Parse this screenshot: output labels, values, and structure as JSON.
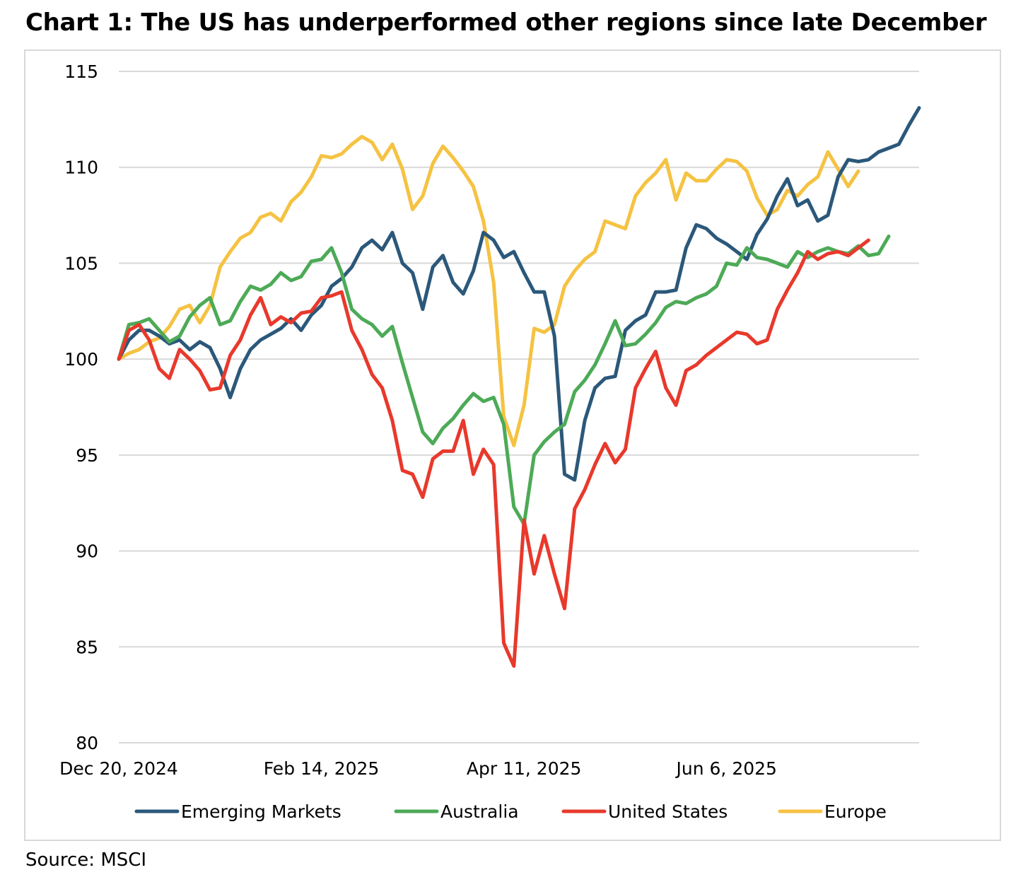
{
  "title": "Chart 1: The US has underperformed other regions since late December",
  "source": "Source: MSCI",
  "chart_data": {
    "type": "line",
    "title": "Chart 1: The US has underperformed other regions since late December",
    "xlabel": "",
    "ylabel": "",
    "ylim": [
      80,
      115
    ],
    "yticks": [
      "115",
      "110",
      "105",
      "100",
      "95",
      "90",
      "85",
      "80"
    ],
    "xticks": [
      "Dec 20, 2024",
      "Feb 14, 2025",
      "Apr 11, 2025",
      "Jun 6, 2025"
    ],
    "grid": true,
    "legend_position": "bottom",
    "x_index": "trading days from Dec 20, 2024 (0) to late Jul 2025 (149); Feb 14, 2025 = 40, Apr 11, 2025 = 80, Jun 6, 2025 = 120",
    "series": [
      {
        "name": "Emerging Markets",
        "color": "#2b587a",
        "points": [
          [
            0,
            100
          ],
          [
            2,
            101
          ],
          [
            4,
            101.5
          ],
          [
            6,
            101.5
          ],
          [
            8,
            101.2
          ],
          [
            10,
            100.8
          ],
          [
            12,
            101
          ],
          [
            14,
            100.5
          ],
          [
            16,
            100.9
          ],
          [
            18,
            100.6
          ],
          [
            20,
            99.5
          ],
          [
            22,
            98
          ],
          [
            24,
            99.5
          ],
          [
            26,
            100.5
          ],
          [
            28,
            101
          ],
          [
            30,
            101.3
          ],
          [
            32,
            101.6
          ],
          [
            34,
            102.1
          ],
          [
            36,
            101.5
          ],
          [
            38,
            102.3
          ],
          [
            40,
            102.8
          ],
          [
            42,
            103.8
          ],
          [
            44,
            104.2
          ],
          [
            46,
            104.8
          ],
          [
            48,
            105.8
          ],
          [
            50,
            106.2
          ],
          [
            52,
            105.7
          ],
          [
            54,
            106.6
          ],
          [
            56,
            105
          ],
          [
            58,
            104.5
          ],
          [
            60,
            102.6
          ],
          [
            62,
            104.8
          ],
          [
            64,
            105.4
          ],
          [
            66,
            104
          ],
          [
            68,
            103.4
          ],
          [
            70,
            104.6
          ],
          [
            72,
            106.6
          ],
          [
            74,
            106.2
          ],
          [
            76,
            105.3
          ],
          [
            78,
            105.6
          ],
          [
            80,
            104.5
          ],
          [
            82,
            103.5
          ],
          [
            84,
            103.5
          ],
          [
            86,
            101.2
          ],
          [
            88,
            94
          ],
          [
            90,
            93.7
          ],
          [
            92,
            96.8
          ],
          [
            94,
            98.5
          ],
          [
            96,
            99
          ],
          [
            98,
            99.1
          ],
          [
            100,
            101.5
          ],
          [
            102,
            102
          ],
          [
            104,
            102.3
          ],
          [
            106,
            103.5
          ],
          [
            108,
            103.5
          ],
          [
            110,
            103.6
          ],
          [
            112,
            105.8
          ],
          [
            114,
            107
          ],
          [
            116,
            106.8
          ],
          [
            118,
            106.3
          ],
          [
            120,
            106
          ],
          [
            122,
            105.6
          ],
          [
            124,
            105.2
          ],
          [
            126,
            106.5
          ],
          [
            128,
            107.3
          ],
          [
            130,
            108.5
          ],
          [
            132,
            109.4
          ],
          [
            134,
            108
          ],
          [
            136,
            108.3
          ],
          [
            138,
            107.2
          ],
          [
            140,
            107.5
          ],
          [
            142,
            109.5
          ],
          [
            144,
            110.4
          ],
          [
            146,
            110.3
          ],
          [
            148,
            110.4
          ],
          [
            150,
            110.8
          ],
          [
            152,
            111
          ],
          [
            154,
            111.2
          ],
          [
            156,
            112.2
          ],
          [
            158,
            113.1
          ]
        ]
      },
      {
        "name": "Australia",
        "color": "#4daa57",
        "points": [
          [
            0,
            100
          ],
          [
            2,
            101.8
          ],
          [
            4,
            101.9
          ],
          [
            6,
            102.1
          ],
          [
            8,
            101.5
          ],
          [
            10,
            100.9
          ],
          [
            12,
            101.2
          ],
          [
            14,
            102.2
          ],
          [
            16,
            102.8
          ],
          [
            18,
            103.2
          ],
          [
            20,
            101.8
          ],
          [
            22,
            102
          ],
          [
            24,
            103
          ],
          [
            26,
            103.8
          ],
          [
            28,
            103.6
          ],
          [
            30,
            103.9
          ],
          [
            32,
            104.5
          ],
          [
            34,
            104.1
          ],
          [
            36,
            104.3
          ],
          [
            38,
            105.1
          ],
          [
            40,
            105.2
          ],
          [
            42,
            105.8
          ],
          [
            44,
            104.5
          ],
          [
            46,
            102.6
          ],
          [
            48,
            102.1
          ],
          [
            50,
            101.8
          ],
          [
            52,
            101.2
          ],
          [
            54,
            101.7
          ],
          [
            56,
            99.8
          ],
          [
            58,
            98
          ],
          [
            60,
            96.2
          ],
          [
            62,
            95.6
          ],
          [
            64,
            96.4
          ],
          [
            66,
            96.9
          ],
          [
            68,
            97.6
          ],
          [
            70,
            98.2
          ],
          [
            72,
            97.8
          ],
          [
            74,
            98
          ],
          [
            76,
            96.6
          ],
          [
            78,
            92.3
          ],
          [
            80,
            91.4
          ],
          [
            82,
            95
          ],
          [
            84,
            95.7
          ],
          [
            86,
            96.2
          ],
          [
            88,
            96.6
          ],
          [
            90,
            98.3
          ],
          [
            92,
            98.9
          ],
          [
            94,
            99.7
          ],
          [
            96,
            100.8
          ],
          [
            98,
            102
          ],
          [
            100,
            100.7
          ],
          [
            102,
            100.8
          ],
          [
            104,
            101.3
          ],
          [
            106,
            101.9
          ],
          [
            108,
            102.7
          ],
          [
            110,
            103
          ],
          [
            112,
            102.9
          ],
          [
            114,
            103.2
          ],
          [
            116,
            103.4
          ],
          [
            118,
            103.8
          ],
          [
            120,
            105
          ],
          [
            122,
            104.9
          ],
          [
            124,
            105.8
          ],
          [
            126,
            105.3
          ],
          [
            128,
            105.2
          ],
          [
            130,
            105
          ],
          [
            132,
            104.8
          ],
          [
            134,
            105.6
          ],
          [
            136,
            105.3
          ],
          [
            138,
            105.6
          ],
          [
            140,
            105.8
          ],
          [
            142,
            105.6
          ],
          [
            144,
            105.5
          ],
          [
            146,
            105.9
          ],
          [
            148,
            105.4
          ],
          [
            150,
            105.5
          ],
          [
            152,
            106.4
          ]
        ]
      },
      {
        "name": "United States",
        "color": "#e8392c",
        "points": [
          [
            0,
            100
          ],
          [
            2,
            101.5
          ],
          [
            4,
            101.8
          ],
          [
            6,
            101
          ],
          [
            8,
            99.5
          ],
          [
            10,
            99
          ],
          [
            12,
            100.5
          ],
          [
            14,
            100
          ],
          [
            16,
            99.4
          ],
          [
            18,
            98.4
          ],
          [
            20,
            98.5
          ],
          [
            22,
            100.2
          ],
          [
            24,
            101
          ],
          [
            26,
            102.3
          ],
          [
            28,
            103.2
          ],
          [
            30,
            101.8
          ],
          [
            32,
            102.2
          ],
          [
            34,
            101.9
          ],
          [
            36,
            102.4
          ],
          [
            38,
            102.5
          ],
          [
            40,
            103.2
          ],
          [
            42,
            103.3
          ],
          [
            44,
            103.5
          ],
          [
            46,
            101.5
          ],
          [
            48,
            100.5
          ],
          [
            50,
            99.2
          ],
          [
            52,
            98.5
          ],
          [
            54,
            96.8
          ],
          [
            56,
            94.2
          ],
          [
            58,
            94
          ],
          [
            60,
            92.8
          ],
          [
            62,
            94.8
          ],
          [
            64,
            95.2
          ],
          [
            66,
            95.2
          ],
          [
            68,
            96.8
          ],
          [
            70,
            94
          ],
          [
            72,
            95.3
          ],
          [
            74,
            94.5
          ],
          [
            76,
            85.2
          ],
          [
            78,
            84
          ],
          [
            80,
            91.6
          ],
          [
            82,
            88.8
          ],
          [
            84,
            90.8
          ],
          [
            86,
            88.8
          ],
          [
            88,
            87
          ],
          [
            90,
            92.2
          ],
          [
            92,
            93.2
          ],
          [
            94,
            94.5
          ],
          [
            96,
            95.6
          ],
          [
            98,
            94.6
          ],
          [
            100,
            95.3
          ],
          [
            102,
            98.5
          ],
          [
            104,
            99.5
          ],
          [
            106,
            100.4
          ],
          [
            108,
            98.5
          ],
          [
            110,
            97.6
          ],
          [
            112,
            99.4
          ],
          [
            114,
            99.7
          ],
          [
            116,
            100.2
          ],
          [
            118,
            100.6
          ],
          [
            120,
            101
          ],
          [
            122,
            101.4
          ],
          [
            124,
            101.3
          ],
          [
            126,
            100.8
          ],
          [
            128,
            101
          ],
          [
            130,
            102.6
          ],
          [
            132,
            103.6
          ],
          [
            134,
            104.5
          ],
          [
            136,
            105.6
          ],
          [
            138,
            105.2
          ],
          [
            140,
            105.5
          ],
          [
            142,
            105.6
          ],
          [
            144,
            105.4
          ],
          [
            146,
            105.8
          ],
          [
            148,
            106.2
          ]
        ]
      },
      {
        "name": "Europe",
        "color": "#f5c242",
        "points": [
          [
            0,
            100
          ],
          [
            2,
            100.3
          ],
          [
            4,
            100.5
          ],
          [
            6,
            100.9
          ],
          [
            8,
            101.1
          ],
          [
            10,
            101.7
          ],
          [
            12,
            102.6
          ],
          [
            14,
            102.8
          ],
          [
            16,
            101.9
          ],
          [
            18,
            102.8
          ],
          [
            20,
            104.8
          ],
          [
            22,
            105.6
          ],
          [
            24,
            106.3
          ],
          [
            26,
            106.6
          ],
          [
            28,
            107.4
          ],
          [
            30,
            107.6
          ],
          [
            32,
            107.2
          ],
          [
            34,
            108.2
          ],
          [
            36,
            108.7
          ],
          [
            38,
            109.5
          ],
          [
            40,
            110.6
          ],
          [
            42,
            110.5
          ],
          [
            44,
            110.7
          ],
          [
            46,
            111.2
          ],
          [
            48,
            111.6
          ],
          [
            50,
            111.3
          ],
          [
            52,
            110.4
          ],
          [
            54,
            111.2
          ],
          [
            56,
            109.9
          ],
          [
            58,
            107.8
          ],
          [
            60,
            108.5
          ],
          [
            62,
            110.2
          ],
          [
            64,
            111.1
          ],
          [
            66,
            110.5
          ],
          [
            68,
            109.8
          ],
          [
            70,
            109
          ],
          [
            72,
            107.2
          ],
          [
            74,
            104
          ],
          [
            76,
            97
          ],
          [
            78,
            95.5
          ],
          [
            80,
            97.6
          ],
          [
            82,
            101.6
          ],
          [
            84,
            101.4
          ],
          [
            86,
            101.8
          ],
          [
            88,
            103.8
          ],
          [
            90,
            104.6
          ],
          [
            92,
            105.2
          ],
          [
            94,
            105.6
          ],
          [
            96,
            107.2
          ],
          [
            98,
            107
          ],
          [
            100,
            106.8
          ],
          [
            102,
            108.5
          ],
          [
            104,
            109.2
          ],
          [
            106,
            109.7
          ],
          [
            108,
            110.4
          ],
          [
            110,
            108.3
          ],
          [
            112,
            109.7
          ],
          [
            114,
            109.3
          ],
          [
            116,
            109.3
          ],
          [
            118,
            109.9
          ],
          [
            120,
            110.4
          ],
          [
            122,
            110.3
          ],
          [
            124,
            109.8
          ],
          [
            126,
            108.4
          ],
          [
            128,
            107.5
          ],
          [
            130,
            107.8
          ],
          [
            132,
            108.8
          ],
          [
            134,
            108.5
          ],
          [
            136,
            109.1
          ],
          [
            138,
            109.5
          ],
          [
            140,
            110.8
          ],
          [
            142,
            109.9
          ],
          [
            144,
            109
          ],
          [
            146,
            109.8
          ]
        ]
      }
    ]
  }
}
